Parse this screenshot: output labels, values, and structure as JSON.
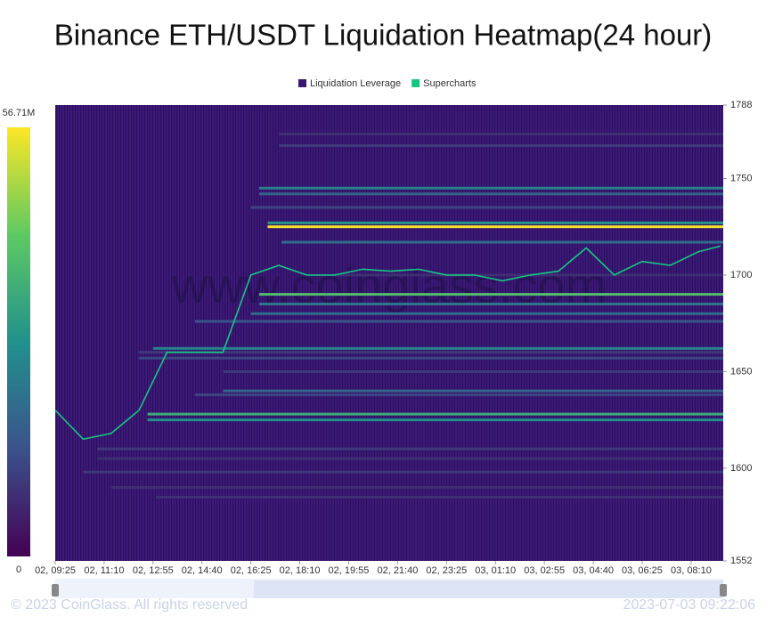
{
  "chart_data": {
    "type": "heatmap",
    "title": "Binance ETH/USDT Liquidation Heatmap(24 hour)",
    "watermark": "www.coinglass.com",
    "copyright": "© 2023 CoinGlass. All rights reserved",
    "timestamp": "2023-07-03 09:22:06",
    "ylim": [
      1552,
      1788
    ],
    "yticks": [
      1552,
      1600,
      1650,
      1700,
      1750,
      1788
    ],
    "xlim": [
      0,
      23.9
    ],
    "xticks": [
      {
        "value": 0,
        "label": "02, 09:25"
      },
      {
        "value": 1.75,
        "label": "02, 11:10"
      },
      {
        "value": 3.5,
        "label": "02, 12:55"
      },
      {
        "value": 5.25,
        "label": "02, 14:40"
      },
      {
        "value": 7,
        "label": "02, 16:25"
      },
      {
        "value": 8.75,
        "label": "02, 18:10"
      },
      {
        "value": 10.5,
        "label": "02, 19:55"
      },
      {
        "value": 12.25,
        "label": "02, 21:40"
      },
      {
        "value": 14,
        "label": "02, 23:25"
      },
      {
        "value": 15.75,
        "label": "03, 01:10"
      },
      {
        "value": 17.5,
        "label": "03, 02:55"
      },
      {
        "value": 19.25,
        "label": "03, 04:40"
      },
      {
        "value": 21,
        "label": "03, 06:25"
      },
      {
        "value": 22.75,
        "label": "03, 08:10"
      }
    ],
    "colorbar_lim": [
      0,
      56.71
    ],
    "colorbar_ticks": [
      {
        "value": 56.71,
        "label": "56.71M"
      },
      0
    ],
    "series": [
      {
        "name": "Liquidation Leverage",
        "color": "#3b1670",
        "levels": [
          {
            "price": 1773,
            "start": 8,
            "value": 8
          },
          {
            "price": 1767,
            "start": 8,
            "value": 10
          },
          {
            "price": 1745,
            "start": 7.3,
            "value": 25
          },
          {
            "price": 1742,
            "start": 7.3,
            "value": 18
          },
          {
            "price": 1735,
            "start": 7,
            "value": 12
          },
          {
            "price": 1727,
            "start": 7.6,
            "value": 30
          },
          {
            "price": 1725,
            "start": 7.6,
            "value": 56
          },
          {
            "price": 1717,
            "start": 8.1,
            "value": 20
          },
          {
            "price": 1700,
            "start": 10,
            "value": 8
          },
          {
            "price": 1690,
            "start": 7.3,
            "value": 40
          },
          {
            "price": 1685,
            "start": 7.3,
            "value": 22
          },
          {
            "price": 1680,
            "start": 7,
            "value": 20
          },
          {
            "price": 1676,
            "start": 5,
            "value": 15
          },
          {
            "price": 1662,
            "start": 3.5,
            "value": 25
          },
          {
            "price": 1660,
            "start": 3,
            "value": 10
          },
          {
            "price": 1657,
            "start": 3,
            "value": 12
          },
          {
            "price": 1650,
            "start": 6,
            "value": 10
          },
          {
            "price": 1640,
            "start": 6,
            "value": 18
          },
          {
            "price": 1638,
            "start": 5,
            "value": 12
          },
          {
            "price": 1628,
            "start": 3.3,
            "value": 35
          },
          {
            "price": 1625,
            "start": 3.3,
            "value": 28
          },
          {
            "price": 1610,
            "start": 1.5,
            "value": 10
          },
          {
            "price": 1605,
            "start": 1.5,
            "value": 8
          },
          {
            "price": 1598,
            "start": 1,
            "value": 10
          },
          {
            "price": 1590,
            "start": 2,
            "value": 8
          },
          {
            "price": 1585,
            "start": 3.6,
            "value": 8
          }
        ]
      },
      {
        "name": "Supercharts",
        "color": "#16c784",
        "x": [
          0,
          1,
          2,
          3,
          4,
          5,
          6,
          7,
          8,
          9,
          10,
          11,
          12,
          13,
          14,
          15,
          16,
          17,
          18,
          19,
          20,
          21,
          22,
          23,
          23.8
        ],
        "values": [
          1630,
          1615,
          1618,
          1630,
          1660,
          1660,
          1660,
          1700,
          1705,
          1700,
          1700,
          1703,
          1702,
          1703,
          1700,
          1700,
          1697,
          1700,
          1702,
          1714,
          1700,
          1707,
          1705,
          1712,
          1715
        ]
      }
    ]
  }
}
